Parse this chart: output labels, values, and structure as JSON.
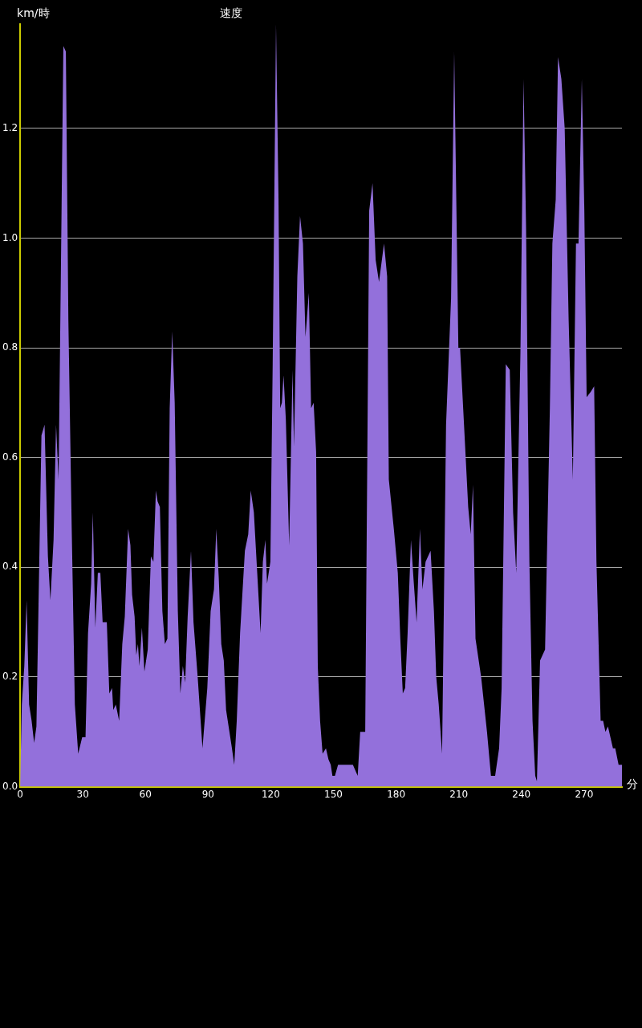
{
  "chart_data": {
    "type": "area",
    "title": "速度",
    "xlabel": "分",
    "ylabel": "km/時",
    "x": [
      0,
      0.8,
      2.0,
      3.1,
      4.3,
      5.5,
      6.7,
      7.8,
      10.2,
      11.7,
      13.3,
      14.5,
      16.0,
      17.2,
      18.4,
      20.7,
      21.9,
      23.1,
      24.7,
      26.2,
      27.8,
      29.7,
      31.3,
      32.5,
      34.0,
      34.8,
      36.0,
      37.2,
      38.4,
      39.5,
      41.5,
      42.7,
      44.0,
      44.6,
      45.8,
      47.4,
      48.9,
      50.1,
      51.7,
      52.8,
      53.6,
      54.8,
      55.6,
      56.4,
      57.1,
      58.3,
      59.5,
      61.1,
      62.6,
      63.8,
      65.0,
      65.8,
      66.9,
      68.1,
      69.3,
      70.5,
      71.6,
      72.8,
      74.0,
      75.5,
      76.7,
      77.9,
      79.0,
      80.2,
      81.8,
      83.0,
      85.0,
      87.3,
      89.6,
      91.2,
      92.8,
      93.9,
      95.1,
      96.3,
      97.5,
      98.6,
      100.2,
      101.4,
      102.5,
      103.7,
      105.3,
      107.6,
      109.2,
      110.4,
      111.9,
      113.5,
      115.1,
      116.2,
      117.4,
      118.2,
      119.8,
      120.9,
      122.5,
      123.7,
      124.5,
      125.3,
      126.1,
      127.2,
      128.8,
      130.4,
      131.1,
      132.7,
      134.0,
      135.4,
      136.6,
      138.2,
      139.3,
      140.5,
      141.7,
      142.5,
      143.6,
      144.8,
      146.4,
      147.6,
      148.7,
      149.5,
      150.7,
      152.2,
      153.8,
      156.2,
      159.3,
      161.6,
      162.8,
      165.2,
      167.1,
      168.7,
      170.2,
      171.8,
      174.2,
      175.7,
      176.5,
      178.9,
      180.8,
      182.0,
      183.2,
      184.3,
      185.5,
      187.1,
      188.3,
      189.8,
      191.4,
      192.6,
      194.1,
      196.5,
      198.1,
      199.2,
      200.4,
      202.0,
      203.9,
      206.3,
      207.8,
      209.8,
      210.6,
      212.5,
      214.5,
      215.7,
      216.8,
      218.0,
      220.7,
      223.5,
      225.4,
      227.4,
      229.3,
      230.5,
      232.5,
      234.4,
      236.0,
      237.5,
      239.5,
      241.0,
      242.2,
      243.8,
      245.3,
      246.6,
      247.4,
      248.9,
      251.3,
      253.6,
      254.8,
      256.4,
      257.5,
      259.1,
      260.7,
      262.6,
      264.6,
      266.1,
      267.3,
      268.9,
      270.1,
      271.2,
      273.2,
      274.8,
      275.9,
      277.9,
      279.1,
      280.2,
      281.4,
      283.8,
      284.9,
      286.5,
      288.1
    ],
    "series": [
      {
        "color": "#9370db",
        "values": [
          0,
          0.15,
          0.22,
          0.34,
          0.15,
          0.12,
          0.08,
          0.11,
          0.64,
          0.66,
          0.42,
          0.34,
          0.45,
          0.66,
          0.56,
          1.35,
          1.34,
          0.85,
          0.47,
          0.15,
          0.06,
          0.09,
          0.09,
          0.28,
          0.37,
          0.5,
          0.29,
          0.39,
          0.39,
          0.3,
          0.3,
          0.17,
          0.18,
          0.14,
          0.15,
          0.12,
          0.26,
          0.31,
          0.47,
          0.44,
          0.35,
          0.31,
          0.24,
          0.26,
          0.22,
          0.29,
          0.21,
          0.25,
          0.42,
          0.41,
          0.54,
          0.52,
          0.51,
          0.32,
          0.26,
          0.27,
          0.69,
          0.83,
          0.7,
          0.32,
          0.17,
          0.22,
          0.19,
          0.31,
          0.43,
          0.3,
          0.2,
          0.07,
          0.18,
          0.32,
          0.36,
          0.47,
          0.38,
          0.26,
          0.23,
          0.14,
          0.1,
          0.07,
          0.04,
          0.12,
          0.28,
          0.43,
          0.46,
          0.54,
          0.5,
          0.39,
          0.28,
          0.41,
          0.45,
          0.37,
          0.41,
          0.77,
          1.39,
          1.07,
          0.69,
          0.7,
          0.75,
          0.67,
          0.44,
          0.76,
          0.62,
          0.93,
          1.04,
          0.99,
          0.82,
          0.9,
          0.69,
          0.7,
          0.61,
          0.22,
          0.12,
          0.06,
          0.07,
          0.05,
          0.04,
          0.02,
          0.02,
          0.04,
          0.04,
          0.04,
          0.04,
          0.02,
          0.1,
          0.1,
          1.05,
          1.1,
          0.96,
          0.92,
          0.99,
          0.93,
          0.56,
          0.47,
          0.39,
          0.27,
          0.17,
          0.18,
          0.28,
          0.45,
          0.38,
          0.3,
          0.47,
          0.36,
          0.41,
          0.43,
          0.32,
          0.2,
          0.15,
          0.06,
          0.66,
          0.89,
          1.34,
          0.8,
          0.8,
          0.66,
          0.51,
          0.46,
          0.55,
          0.27,
          0.2,
          0.1,
          0.02,
          0.02,
          0.07,
          0.18,
          0.77,
          0.76,
          0.5,
          0.39,
          0.79,
          1.29,
          1.02,
          0.41,
          0.12,
          0.02,
          0.01,
          0.23,
          0.25,
          0.69,
          0.99,
          1.07,
          1.33,
          1.29,
          1.2,
          0.85,
          0.56,
          0.99,
          0.99,
          1.29,
          1.05,
          0.71,
          0.72,
          0.73,
          0.41,
          0.12,
          0.12,
          0.1,
          0.11,
          0.07,
          0.07,
          0.04,
          0.04
        ]
      }
    ],
    "xlim": [
      0,
      288.1
    ],
    "ylim": [
      0,
      1.39
    ],
    "xticks": [
      0,
      30,
      60,
      90,
      120,
      150,
      180,
      210,
      240,
      270
    ],
    "yticks": [
      {
        "value": 0,
        "label": "0.0"
      },
      {
        "value": 0.2,
        "label": "0.2"
      },
      {
        "value": 0.4,
        "label": "0.4"
      },
      {
        "value": 0.6,
        "label": "0.6"
      },
      {
        "value": 0.8,
        "label": "0.8"
      },
      {
        "value": 1.0,
        "label": "1.0"
      },
      {
        "value": 1.2,
        "label": "1.2"
      }
    ],
    "grid": "y",
    "legend": false,
    "marker": "none"
  }
}
